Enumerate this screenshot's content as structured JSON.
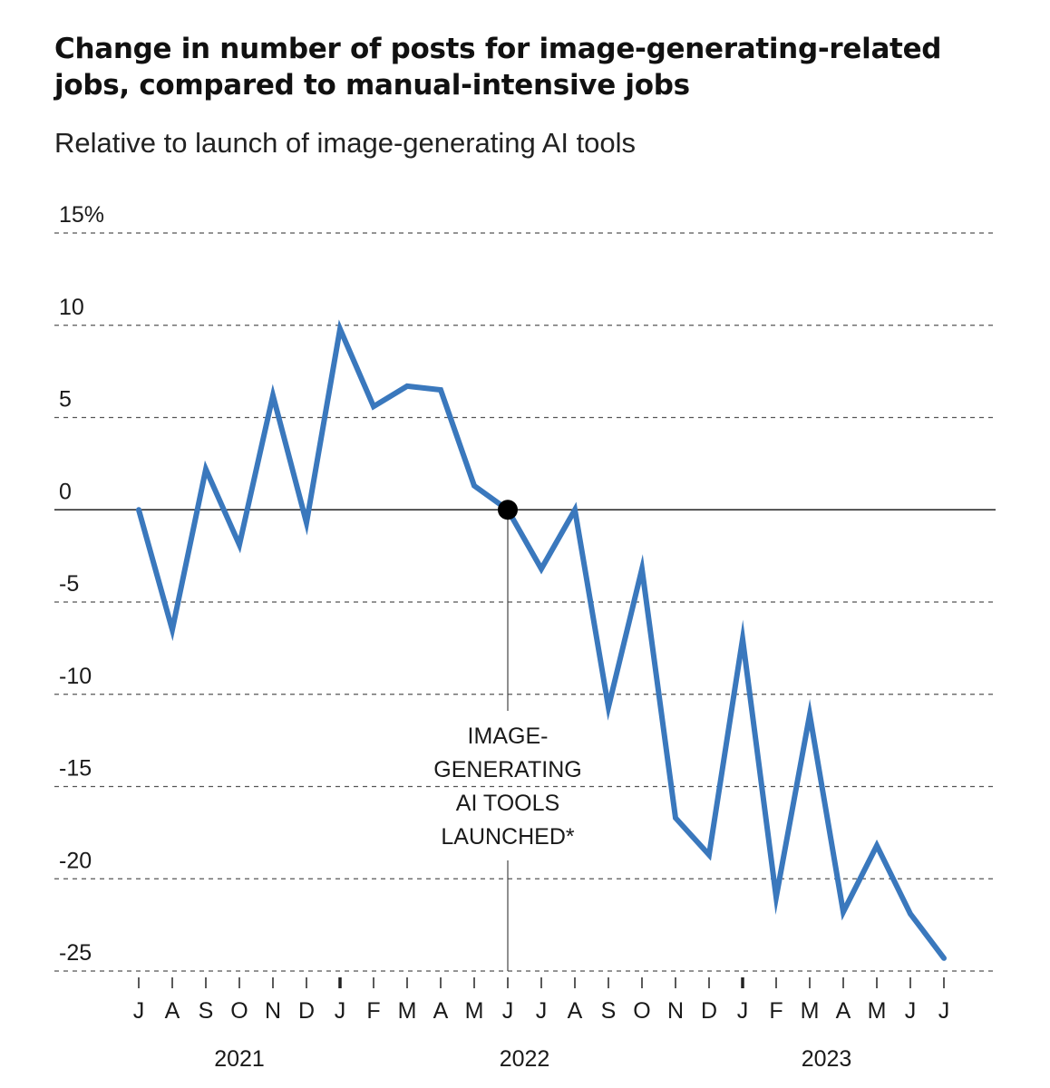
{
  "chart_data": {
    "type": "line",
    "title": "Change in number of posts for image-generating-related jobs, compared to manual-intensive jobs",
    "subtitle": "Relative to launch of image-generating AI tools",
    "ylim": [
      -25,
      15
    ],
    "y_ticks": [
      15,
      10,
      5,
      0,
      -5,
      -10,
      -15,
      -20,
      -25
    ],
    "y_tick_labels": [
      "15%",
      "10",
      "5",
      "0",
      "-5",
      "-10",
      "-15",
      "-20",
      "-25"
    ],
    "grid": "horizontal-dashed",
    "x": [
      "J",
      "A",
      "S",
      "O",
      "N",
      "D",
      "J",
      "F",
      "M",
      "A",
      "M",
      "J",
      "J",
      "A",
      "S",
      "O",
      "N",
      "D",
      "J",
      "F",
      "M",
      "A",
      "M",
      "J",
      "J"
    ],
    "x_years": [
      {
        "label": "2021",
        "center_index": 3
      },
      {
        "label": "2022",
        "center_index": 11.5
      },
      {
        "label": "2023",
        "center_index": 20.5
      }
    ],
    "year_start_indices": [
      6,
      18
    ],
    "series": [
      {
        "color": "#3a78bd",
        "values": [
          0,
          -6.5,
          2.2,
          -1.9,
          6.2,
          -0.7,
          9.8,
          5.6,
          6.7,
          6.5,
          1.3,
          0,
          -3.2,
          0,
          -10.7,
          -3.2,
          -16.7,
          -18.7,
          -7.0,
          -21.0,
          -11.1,
          -21.8,
          -18.2,
          -21.9,
          -24.3
        ]
      }
    ],
    "annotation": {
      "x_index": 11,
      "y": 0,
      "lines": [
        "IMAGE-",
        "GENERATING",
        "AI TOOLS",
        "LAUNCHED*"
      ]
    }
  }
}
